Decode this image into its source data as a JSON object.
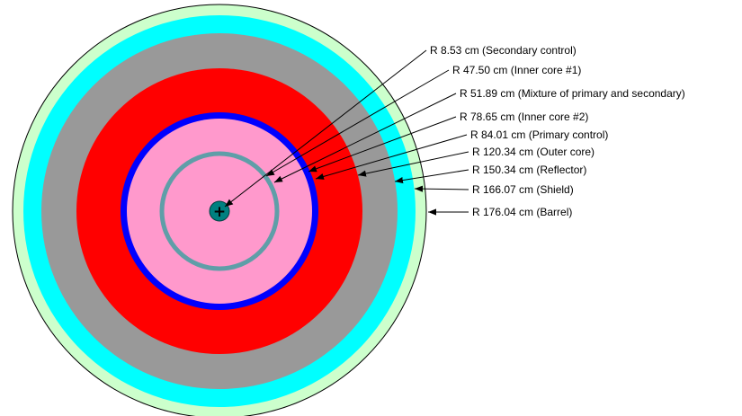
{
  "diagram": {
    "rings": [
      {
        "id": "barrel",
        "label": "R 176.04 cm (Barrel)",
        "color": "#ccffcc",
        "kind": "fill"
      },
      {
        "id": "shield",
        "label": "R 166.07 cm (Shield)",
        "color": "#00ffff",
        "kind": "fill"
      },
      {
        "id": "reflector",
        "label": "R 150.34 cm (Reflector)",
        "color": "#999999",
        "kind": "fill"
      },
      {
        "id": "outer-core",
        "label": "R 120.34 cm (Outer core)",
        "color": "#ff0000",
        "kind": "fill"
      },
      {
        "id": "primary-control",
        "label": "R 84.01 cm (Primary control)",
        "color": "#0000ff",
        "kind": "fill"
      },
      {
        "id": "inner-core-2",
        "label": "R 78.65 cm (Inner core #2)",
        "color": "#ff99cc",
        "kind": "fill"
      },
      {
        "id": "mixture",
        "label": "R 51.89 cm (Mixture of primary and secondary)",
        "color": "#5f9ea8",
        "kind": "ring"
      },
      {
        "id": "inner-core-1",
        "label": "R 47.50 cm (Inner core #1)",
        "color": "#ff99cc",
        "kind": "fill"
      },
      {
        "id": "secondary-control",
        "label": "R 8.53 cm (Secondary control)",
        "color": "#008080",
        "kind": "fill"
      }
    ],
    "center_mark": "+"
  }
}
